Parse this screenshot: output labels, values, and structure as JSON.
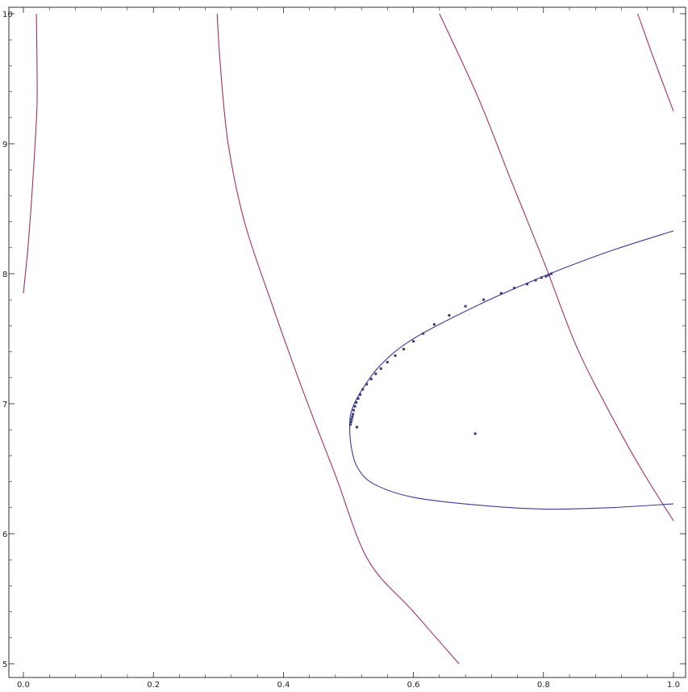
{
  "chart_data": {
    "type": "scatter",
    "title": "",
    "xlabel": "",
    "ylabel": "",
    "xlim": [
      0,
      1
    ],
    "ylim": [
      5,
      10
    ],
    "grid": false,
    "legend": "none",
    "x_ticks": [
      {
        "value": 0.0,
        "label": "0.0"
      },
      {
        "value": 0.2,
        "label": "0.2"
      },
      {
        "value": 0.4,
        "label": "0.4"
      },
      {
        "value": 0.6,
        "label": "0.6"
      },
      {
        "value": 0.8,
        "label": "0.8"
      },
      {
        "value": 1.0,
        "label": "1.0"
      }
    ],
    "y_ticks": [
      {
        "value": 5,
        "label": "5"
      },
      {
        "value": 6,
        "label": "6"
      },
      {
        "value": 7,
        "label": "7"
      },
      {
        "value": 8,
        "label": "8"
      },
      {
        "value": 9,
        "label": "9"
      },
      {
        "value": 10,
        "label": "10"
      }
    ],
    "colors": {
      "purple_curve": "#a0306a",
      "blue_curve": "#3a3a9a",
      "points": "#3a3a7a",
      "axis": "#000000"
    },
    "series": [
      {
        "kind": "line",
        "color": "#a0306a",
        "points": [
          [
            0.0,
            7.85
          ],
          [
            0.007,
            8.2
          ],
          [
            0.013,
            8.6
          ],
          [
            0.018,
            9.0
          ],
          [
            0.021,
            9.3
          ],
          [
            0.021,
            9.6
          ],
          [
            0.02,
            10.0
          ]
        ]
      },
      {
        "kind": "line",
        "color": "#a0306a",
        "points": [
          [
            0.298,
            10.0
          ],
          [
            0.303,
            9.6
          ],
          [
            0.315,
            9.0
          ],
          [
            0.34,
            8.4
          ],
          [
            0.38,
            7.8
          ],
          [
            0.43,
            7.1
          ],
          [
            0.48,
            6.45
          ],
          [
            0.53,
            5.8
          ],
          [
            0.6,
            5.4
          ],
          [
            0.67,
            5.0
          ]
        ]
      },
      {
        "kind": "line",
        "color": "#a0306a",
        "points": [
          [
            0.64,
            10.0
          ],
          [
            0.7,
            9.35
          ],
          [
            0.75,
            8.72
          ],
          [
            0.8,
            8.1
          ],
          [
            0.85,
            7.45
          ],
          [
            0.9,
            6.95
          ],
          [
            0.95,
            6.5
          ],
          [
            1.0,
            6.1
          ]
        ]
      },
      {
        "kind": "line",
        "color": "#a0306a",
        "points": [
          [
            0.945,
            10.0
          ],
          [
            0.97,
            9.65
          ],
          [
            1.0,
            9.25
          ]
        ]
      },
      {
        "kind": "line",
        "color": "#3a3a9a",
        "points": [
          [
            1.0,
            8.33
          ],
          [
            0.9,
            8.17
          ],
          [
            0.8,
            7.98
          ],
          [
            0.7,
            7.76
          ],
          [
            0.6,
            7.5
          ],
          [
            0.55,
            7.3
          ],
          [
            0.52,
            7.1
          ],
          [
            0.505,
            6.95
          ],
          [
            0.502,
            6.82
          ],
          [
            0.505,
            6.65
          ],
          [
            0.515,
            6.5
          ],
          [
            0.54,
            6.38
          ],
          [
            0.6,
            6.28
          ],
          [
            0.7,
            6.22
          ],
          [
            0.8,
            6.19
          ],
          [
            0.9,
            6.2
          ],
          [
            1.0,
            6.23
          ]
        ]
      },
      {
        "kind": "scatter",
        "color": "#3a3a7a",
        "points": [
          [
            0.503,
            6.84
          ],
          [
            0.504,
            6.86
          ],
          [
            0.505,
            6.88
          ],
          [
            0.506,
            6.9
          ],
          [
            0.507,
            6.92
          ],
          [
            0.508,
            6.95
          ],
          [
            0.51,
            6.98
          ],
          [
            0.512,
            7.01
          ],
          [
            0.515,
            7.04
          ],
          [
            0.518,
            7.07
          ],
          [
            0.522,
            7.11
          ],
          [
            0.528,
            7.15
          ],
          [
            0.535,
            7.19
          ],
          [
            0.542,
            7.23
          ],
          [
            0.55,
            7.27
          ],
          [
            0.56,
            7.32
          ],
          [
            0.572,
            7.37
          ],
          [
            0.585,
            7.42
          ],
          [
            0.6,
            7.48
          ],
          [
            0.615,
            7.54
          ],
          [
            0.632,
            7.61
          ],
          [
            0.655,
            7.68
          ],
          [
            0.68,
            7.75
          ],
          [
            0.708,
            7.8
          ],
          [
            0.735,
            7.85
          ],
          [
            0.755,
            7.89
          ],
          [
            0.775,
            7.92
          ],
          [
            0.788,
            7.95
          ],
          [
            0.797,
            7.97
          ],
          [
            0.804,
            7.98
          ],
          [
            0.808,
            7.99
          ],
          [
            0.812,
            8.0
          ],
          [
            0.513,
            6.82
          ],
          [
            0.695,
            6.77
          ]
        ]
      }
    ]
  }
}
